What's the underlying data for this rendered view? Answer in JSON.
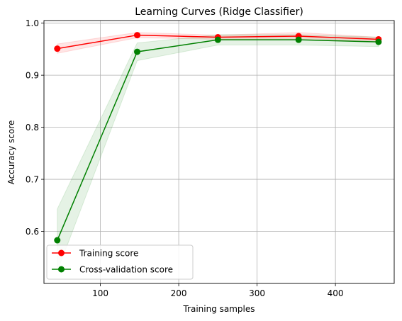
{
  "chart_data": {
    "type": "line",
    "title": "Learning Curves (Ridge Classifier)",
    "xlabel": "Training samples",
    "ylabel": "Accuracy score",
    "xlim": [
      28,
      475
    ],
    "ylim": [
      0.5,
      1.005
    ],
    "xticks": [
      100,
      200,
      300,
      400
    ],
    "xtick_labels": [
      "100",
      "200",
      "300",
      "400"
    ],
    "yticks": [
      0.6,
      0.7,
      0.8,
      0.9,
      1.0
    ],
    "ytick_labels": [
      "0.6",
      "0.7",
      "0.8",
      "0.9",
      "1.0"
    ],
    "grid": true,
    "legend_position": "lower-left",
    "x": [
      45,
      147,
      250,
      353,
      455
    ],
    "series": [
      {
        "name": "Training score",
        "color": "#ff0000",
        "values": [
          0.951,
          0.977,
          0.973,
          0.975,
          0.969
        ],
        "band_lower": [
          0.942,
          0.972,
          0.969,
          0.968,
          0.965
        ],
        "band_upper": [
          0.96,
          0.982,
          0.977,
          0.982,
          0.973
        ]
      },
      {
        "name": "Cross-validation score",
        "color": "#008000",
        "values": [
          0.583,
          0.945,
          0.968,
          0.968,
          0.964
        ],
        "band_lower": [
          0.523,
          0.928,
          0.958,
          0.958,
          0.955
        ],
        "band_upper": [
          0.643,
          0.962,
          0.978,
          0.978,
          0.973
        ]
      }
    ]
  }
}
